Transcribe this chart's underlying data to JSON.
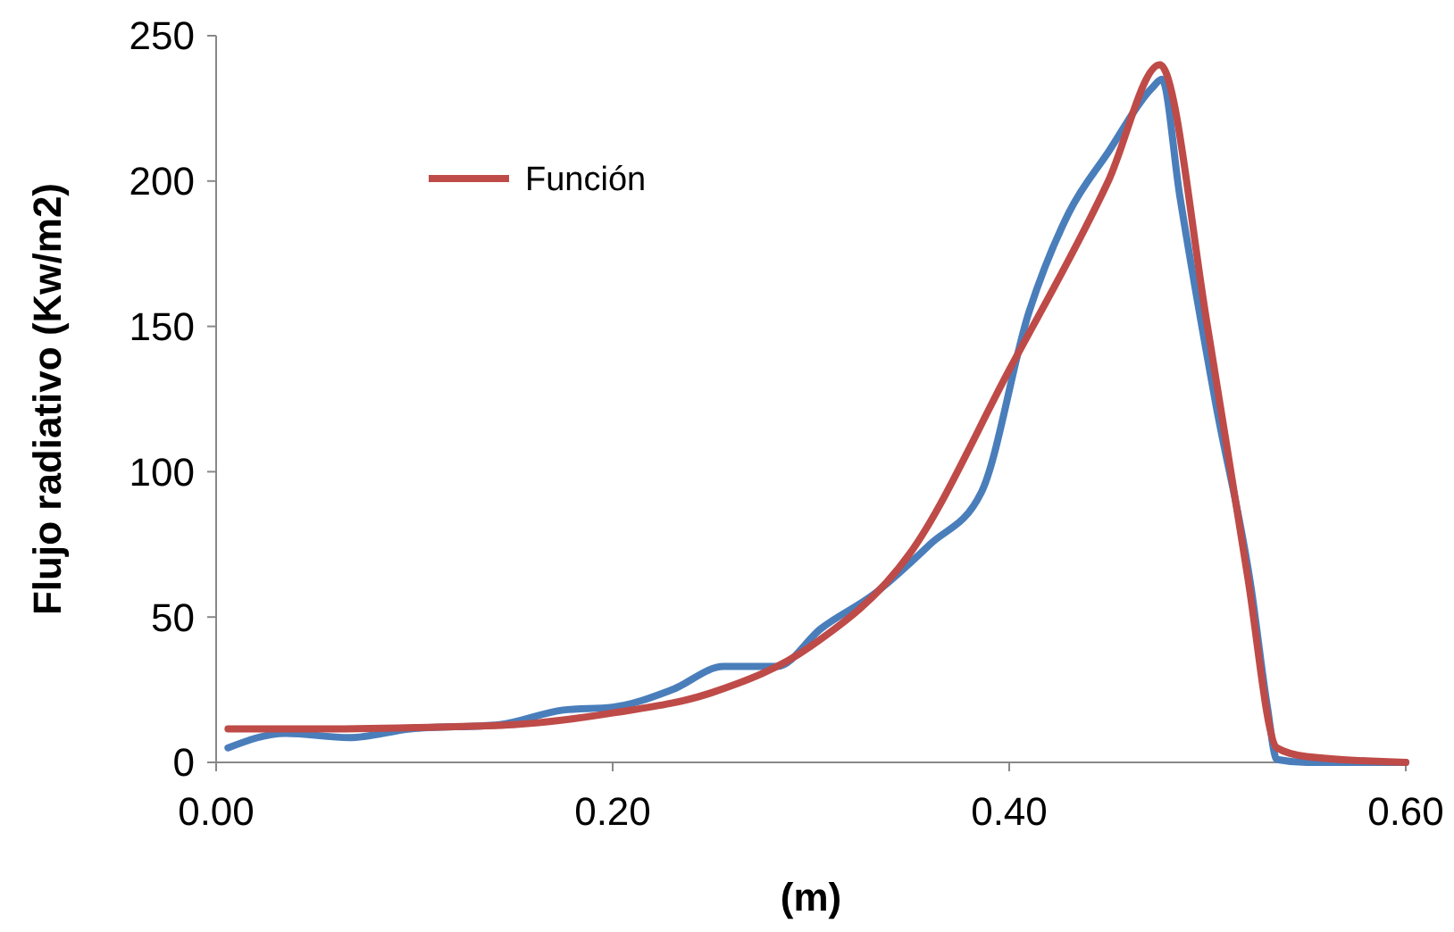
{
  "chart_data": {
    "type": "line",
    "xlabel": "(m)",
    "ylabel": "Flujo radiativo (Kw/m2)",
    "xlim": [
      0,
      0.6
    ],
    "ylim": [
      0,
      250
    ],
    "xticks": [
      {
        "value": 0,
        "label": "0.00"
      },
      {
        "value": 0.2,
        "label": "0.20"
      },
      {
        "value": 0.4,
        "label": "0.40"
      },
      {
        "value": 0.6,
        "label": "0.60"
      }
    ],
    "yticks": [
      0,
      50,
      100,
      150,
      200,
      250
    ],
    "grid": false,
    "legend": "top left",
    "marker": "none",
    "line_style": "solid",
    "series": [
      {
        "color": "#4a7ebb",
        "x": [
          0.006,
          0.035,
          0.067,
          0.098,
          0.143,
          0.175,
          0.2,
          0.23,
          0.256,
          0.283,
          0.305,
          0.332,
          0.36,
          0.386,
          0.41,
          0.43,
          0.45,
          0.472,
          0.477,
          0.486,
          0.504,
          0.522,
          0.53,
          0.535,
          0.55,
          0.6
        ],
        "values": [
          5,
          10,
          8.5,
          11.5,
          13,
          18,
          19,
          25,
          33,
          33,
          46,
          58,
          75,
          93,
          155,
          189,
          210,
          232,
          235,
          195,
          124,
          60,
          20,
          1,
          0,
          0
        ]
      },
      {
        "name": "Función",
        "color": "#be4b48",
        "x": [
          0.006,
          0.05,
          0.1,
          0.15,
          0.2,
          0.25,
          0.3,
          0.35,
          0.4,
          0.45,
          0.476,
          0.5,
          0.52,
          0.535,
          0.55,
          0.6
        ],
        "values": [
          11.5,
          11.5,
          12,
          13,
          17,
          24,
          40,
          72,
          135,
          200,
          240,
          150,
          65,
          5,
          2,
          0
        ]
      }
    ]
  }
}
